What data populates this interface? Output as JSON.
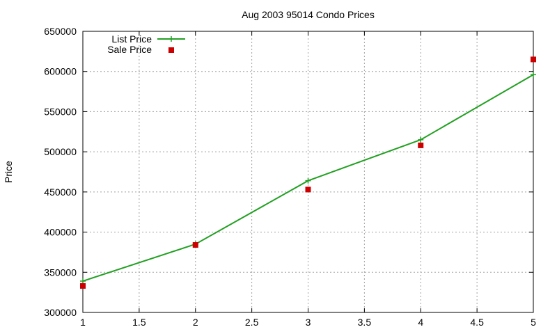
{
  "chart_data": {
    "type": "line",
    "title": "Aug 2003 95014 Condo Prices",
    "xlabel": "",
    "ylabel": "Price",
    "xlim": [
      1,
      5
    ],
    "ylim": [
      300000,
      650000
    ],
    "x_ticks": [
      1,
      1.5,
      2,
      2.5,
      3,
      3.5,
      4,
      4.5,
      5
    ],
    "y_ticks": [
      300000,
      350000,
      400000,
      450000,
      500000,
      550000,
      600000,
      650000
    ],
    "grid": true,
    "legend_position": "top-left",
    "series": [
      {
        "name": "List Price",
        "style": "linespoints",
        "marker": "plus",
        "color": "#22a022",
        "x": [
          1,
          2,
          3,
          4,
          5
        ],
        "values": [
          339000,
          385000,
          464000,
          515000,
          596000
        ]
      },
      {
        "name": "Sale Price",
        "style": "points",
        "marker": "square",
        "color": "#cc0000",
        "x": [
          1,
          2,
          3,
          4,
          5
        ],
        "values": [
          333000,
          384000,
          453000,
          508000,
          615000
        ]
      }
    ]
  }
}
